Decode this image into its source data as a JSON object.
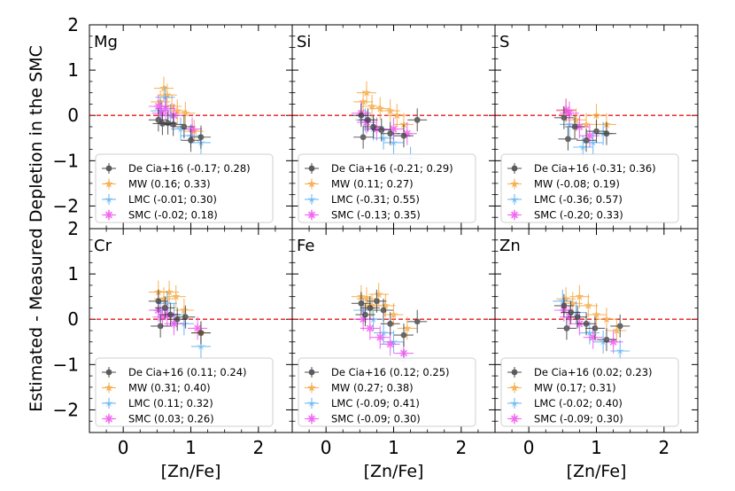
{
  "chart_data": {
    "type": "scatter",
    "xlabel": "[Zn/Fe]",
    "ylabel": "Estimated - Measured Depletion in the SMC",
    "xlim": [
      -0.5,
      2.5
    ],
    "ylim": [
      -2.5,
      2.0
    ],
    "xticks": [
      0,
      1,
      2
    ],
    "xtick_labels": [
      "0",
      "1",
      "2"
    ],
    "yticks": [
      -2,
      -1,
      0,
      1,
      2
    ],
    "ytick_labels": [
      "−2",
      "−1",
      "0",
      "1",
      "2"
    ],
    "reference_line": 0,
    "colors": {
      "De Cia+16": "#333333",
      "MW": "#f5a030",
      "LMC": "#48a8f0",
      "SMC": "#ee44ee"
    },
    "panels": [
      {
        "name": "Mg",
        "legend": [
          {
            "series": "De Cia+16",
            "label": "De Cia+16 (-0.17; 0.28)"
          },
          {
            "series": "MW",
            "label": "MW (0.16; 0.33)"
          },
          {
            "series": "LMC",
            "label": "LMC (-0.01; 0.30)"
          },
          {
            "series": "SMC",
            "label": "SMC (-0.02; 0.18)"
          }
        ],
        "points": [
          {
            "series": "De Cia+16",
            "x": 0.52,
            "y": -0.1
          },
          {
            "series": "De Cia+16",
            "x": 0.58,
            "y": -0.18
          },
          {
            "series": "De Cia+16",
            "x": 0.66,
            "y": -0.17
          },
          {
            "series": "De Cia+16",
            "x": 0.74,
            "y": -0.2
          },
          {
            "series": "De Cia+16",
            "x": 0.9,
            "y": -0.25
          },
          {
            "series": "De Cia+16",
            "x": 1.0,
            "y": -0.55
          },
          {
            "series": "De Cia+16",
            "x": 1.15,
            "y": -0.48
          },
          {
            "series": "MW",
            "x": 0.55,
            "y": 0.3
          },
          {
            "series": "MW",
            "x": 0.6,
            "y": 0.6
          },
          {
            "series": "MW",
            "x": 0.65,
            "y": 0.45
          },
          {
            "series": "MW",
            "x": 0.72,
            "y": 0.2
          },
          {
            "series": "MW",
            "x": 0.8,
            "y": 0.1
          },
          {
            "series": "MW",
            "x": 0.92,
            "y": 0.05
          },
          {
            "series": "MW",
            "x": 1.05,
            "y": -0.35
          },
          {
            "series": "LMC",
            "x": 0.55,
            "y": 0.1
          },
          {
            "series": "LMC",
            "x": 0.62,
            "y": 0.4
          },
          {
            "series": "LMC",
            "x": 0.7,
            "y": 0.0
          },
          {
            "series": "LMC",
            "x": 0.85,
            "y": -0.3
          },
          {
            "series": "LMC",
            "x": 1.0,
            "y": -0.45
          },
          {
            "series": "LMC",
            "x": 1.15,
            "y": -0.6
          },
          {
            "series": "SMC",
            "x": 0.52,
            "y": 0.2
          },
          {
            "series": "SMC",
            "x": 0.57,
            "y": 0.05
          },
          {
            "series": "SMC",
            "x": 0.63,
            "y": 0.15
          },
          {
            "series": "SMC",
            "x": 0.75,
            "y": 0.0
          },
          {
            "series": "SMC",
            "x": 1.02,
            "y": -0.3
          }
        ]
      },
      {
        "name": "Si",
        "legend": [
          {
            "series": "De Cia+16",
            "label": "De Cia+16 (-0.21; 0.29)"
          },
          {
            "series": "MW",
            "label": "MW (0.11; 0.27)"
          },
          {
            "series": "LMC",
            "label": "LMC (-0.31; 0.55)"
          },
          {
            "series": "SMC",
            "label": "SMC (-0.13; 0.35)"
          }
        ],
        "points": [
          {
            "series": "De Cia+16",
            "x": 0.52,
            "y": 0.0
          },
          {
            "series": "De Cia+16",
            "x": 0.55,
            "y": -0.48
          },
          {
            "series": "De Cia+16",
            "x": 0.62,
            "y": -0.1
          },
          {
            "series": "De Cia+16",
            "x": 0.7,
            "y": -0.25
          },
          {
            "series": "De Cia+16",
            "x": 0.82,
            "y": -0.32
          },
          {
            "series": "De Cia+16",
            "x": 0.95,
            "y": -0.4
          },
          {
            "series": "De Cia+16",
            "x": 1.15,
            "y": -0.45
          },
          {
            "series": "De Cia+16",
            "x": 1.35,
            "y": -0.1
          },
          {
            "series": "MW",
            "x": 0.55,
            "y": 0.3
          },
          {
            "series": "MW",
            "x": 0.6,
            "y": 0.5
          },
          {
            "series": "MW",
            "x": 0.68,
            "y": 0.2
          },
          {
            "series": "MW",
            "x": 0.8,
            "y": 0.15
          },
          {
            "series": "MW",
            "x": 0.95,
            "y": 0.1
          },
          {
            "series": "MW",
            "x": 1.05,
            "y": 0.0
          },
          {
            "series": "MW",
            "x": 1.15,
            "y": -0.2
          },
          {
            "series": "LMC",
            "x": 0.58,
            "y": -0.1
          },
          {
            "series": "LMC",
            "x": 0.7,
            "y": -0.3
          },
          {
            "series": "LMC",
            "x": 0.85,
            "y": -0.5
          },
          {
            "series": "LMC",
            "x": 1.0,
            "y": -0.6
          },
          {
            "series": "LMC",
            "x": 1.25,
            "y": -0.95
          },
          {
            "series": "SMC",
            "x": 0.52,
            "y": 0.05
          },
          {
            "series": "SMC",
            "x": 0.6,
            "y": -0.15
          },
          {
            "series": "SMC",
            "x": 0.75,
            "y": -0.3
          },
          {
            "series": "SMC",
            "x": 1.0,
            "y": -0.3
          },
          {
            "series": "SMC",
            "x": 1.2,
            "y": -0.4
          }
        ]
      },
      {
        "name": "S",
        "legend": [
          {
            "series": "De Cia+16",
            "label": "De Cia+16 (-0.31; 0.36)"
          },
          {
            "series": "MW",
            "label": "MW (-0.08; 0.19)"
          },
          {
            "series": "LMC",
            "label": "LMC (-0.36; 0.57)"
          },
          {
            "series": "SMC",
            "label": "SMC (-0.20; 0.33)"
          }
        ],
        "points": [
          {
            "series": "De Cia+16",
            "x": 0.52,
            "y": -0.05
          },
          {
            "series": "De Cia+16",
            "x": 0.58,
            "y": -0.52
          },
          {
            "series": "De Cia+16",
            "x": 0.68,
            "y": -0.25
          },
          {
            "series": "De Cia+16",
            "x": 0.85,
            "y": -0.55
          },
          {
            "series": "De Cia+16",
            "x": 1.0,
            "y": -0.35
          },
          {
            "series": "De Cia+16",
            "x": 1.15,
            "y": -0.4
          },
          {
            "series": "MW",
            "x": 0.55,
            "y": 0.1
          },
          {
            "series": "MW",
            "x": 0.7,
            "y": -0.1
          },
          {
            "series": "MW",
            "x": 0.85,
            "y": -0.2
          },
          {
            "series": "MW",
            "x": 1.0,
            "y": 0.0
          },
          {
            "series": "MW",
            "x": 1.15,
            "y": -0.2
          },
          {
            "series": "LMC",
            "x": 0.6,
            "y": -0.2
          },
          {
            "series": "LMC",
            "x": 0.8,
            "y": -0.7
          },
          {
            "series": "LMC",
            "x": 0.95,
            "y": -0.6
          },
          {
            "series": "LMC",
            "x": 1.1,
            "y": -0.4
          },
          {
            "series": "SMC",
            "x": 0.55,
            "y": 0.12
          },
          {
            "series": "SMC",
            "x": 0.6,
            "y": 0.05
          },
          {
            "series": "SMC",
            "x": 0.75,
            "y": -0.25
          },
          {
            "series": "SMC",
            "x": 0.9,
            "y": -0.45
          }
        ]
      },
      {
        "name": "Cr",
        "legend": [
          {
            "series": "De Cia+16",
            "label": "De Cia+16 (0.11; 0.24)"
          },
          {
            "series": "MW",
            "label": "MW (0.31; 0.40)"
          },
          {
            "series": "LMC",
            "label": "LMC (0.11; 0.32)"
          },
          {
            "series": "SMC",
            "label": "SMC (0.03; 0.26)"
          }
        ],
        "points": [
          {
            "series": "De Cia+16",
            "x": 0.52,
            "y": 0.4
          },
          {
            "series": "De Cia+16",
            "x": 0.55,
            "y": -0.15
          },
          {
            "series": "De Cia+16",
            "x": 0.62,
            "y": 0.25
          },
          {
            "series": "De Cia+16",
            "x": 0.7,
            "y": 0.1
          },
          {
            "series": "De Cia+16",
            "x": 0.8,
            "y": 0.0
          },
          {
            "series": "De Cia+16",
            "x": 0.92,
            "y": 0.05
          },
          {
            "series": "De Cia+16",
            "x": 1.15,
            "y": -0.3
          },
          {
            "series": "MW",
            "x": 0.52,
            "y": 0.6
          },
          {
            "series": "MW",
            "x": 0.6,
            "y": 0.45
          },
          {
            "series": "MW",
            "x": 0.68,
            "y": 0.6
          },
          {
            "series": "MW",
            "x": 0.78,
            "y": 0.5
          },
          {
            "series": "MW",
            "x": 0.9,
            "y": 0.2
          },
          {
            "series": "MW",
            "x": 1.15,
            "y": -0.3
          },
          {
            "series": "LMC",
            "x": 0.55,
            "y": 0.2
          },
          {
            "series": "LMC",
            "x": 0.65,
            "y": 0.35
          },
          {
            "series": "LMC",
            "x": 0.75,
            "y": 0.1
          },
          {
            "series": "LMC",
            "x": 0.9,
            "y": -0.1
          },
          {
            "series": "LMC",
            "x": 1.15,
            "y": -0.6
          },
          {
            "series": "SMC",
            "x": 0.52,
            "y": 0.2
          },
          {
            "series": "SMC",
            "x": 0.58,
            "y": 0.05
          },
          {
            "series": "SMC",
            "x": 0.65,
            "y": 0.1
          },
          {
            "series": "SMC",
            "x": 0.75,
            "y": -0.1
          },
          {
            "series": "SMC",
            "x": 1.1,
            "y": -0.2
          }
        ]
      },
      {
        "name": "Fe",
        "legend": [
          {
            "series": "De Cia+16",
            "label": "De Cia+16 (0.12; 0.25)"
          },
          {
            "series": "MW",
            "label": "MW (0.27; 0.38)"
          },
          {
            "series": "LMC",
            "label": "LMC (-0.09; 0.41)"
          },
          {
            "series": "SMC",
            "label": "SMC (-0.09; 0.30)"
          }
        ],
        "points": [
          {
            "series": "De Cia+16",
            "x": 0.52,
            "y": 0.35
          },
          {
            "series": "De Cia+16",
            "x": 0.58,
            "y": 0.1
          },
          {
            "series": "De Cia+16",
            "x": 0.65,
            "y": 0.25
          },
          {
            "series": "De Cia+16",
            "x": 0.75,
            "y": 0.4
          },
          {
            "series": "De Cia+16",
            "x": 0.85,
            "y": 0.2
          },
          {
            "series": "De Cia+16",
            "x": 0.95,
            "y": -0.1
          },
          {
            "series": "De Cia+16",
            "x": 1.15,
            "y": -0.35
          },
          {
            "series": "De Cia+16",
            "x": 1.35,
            "y": -0.05
          },
          {
            "series": "MW",
            "x": 0.52,
            "y": 0.5
          },
          {
            "series": "MW",
            "x": 0.6,
            "y": 0.45
          },
          {
            "series": "MW",
            "x": 0.68,
            "y": 0.3
          },
          {
            "series": "MW",
            "x": 0.78,
            "y": 0.55
          },
          {
            "series": "MW",
            "x": 0.88,
            "y": 0.3
          },
          {
            "series": "MW",
            "x": 1.0,
            "y": 0.1
          },
          {
            "series": "MW",
            "x": 1.2,
            "y": -0.2
          },
          {
            "series": "LMC",
            "x": 0.55,
            "y": 0.2
          },
          {
            "series": "LMC",
            "x": 0.7,
            "y": 0.0
          },
          {
            "series": "LMC",
            "x": 0.85,
            "y": -0.3
          },
          {
            "series": "LMC",
            "x": 1.0,
            "y": -0.5
          },
          {
            "series": "LMC",
            "x": 1.15,
            "y": -0.9
          },
          {
            "series": "SMC",
            "x": 0.55,
            "y": 0.0
          },
          {
            "series": "SMC",
            "x": 0.65,
            "y": -0.2
          },
          {
            "series": "SMC",
            "x": 0.8,
            "y": -0.4
          },
          {
            "series": "SMC",
            "x": 0.95,
            "y": -0.55
          },
          {
            "series": "SMC",
            "x": 1.15,
            "y": -0.75
          }
        ]
      },
      {
        "name": "Zn",
        "legend": [
          {
            "series": "De Cia+16",
            "label": "De Cia+16 (0.02; 0.23)"
          },
          {
            "series": "MW",
            "label": "MW (0.17; 0.31)"
          },
          {
            "series": "LMC",
            "label": "LMC (-0.02; 0.40)"
          },
          {
            "series": "SMC",
            "label": "SMC (-0.09; 0.30)"
          }
        ],
        "points": [
          {
            "series": "De Cia+16",
            "x": 0.52,
            "y": 0.3
          },
          {
            "series": "De Cia+16",
            "x": 0.56,
            "y": -0.2
          },
          {
            "series": "De Cia+16",
            "x": 0.62,
            "y": 0.15
          },
          {
            "series": "De Cia+16",
            "x": 0.72,
            "y": 0.05
          },
          {
            "series": "De Cia+16",
            "x": 0.85,
            "y": -0.1
          },
          {
            "series": "De Cia+16",
            "x": 0.98,
            "y": -0.2
          },
          {
            "series": "De Cia+16",
            "x": 1.15,
            "y": -0.45
          },
          {
            "series": "De Cia+16",
            "x": 1.35,
            "y": -0.15
          },
          {
            "series": "MW",
            "x": 0.55,
            "y": 0.45
          },
          {
            "series": "MW",
            "x": 0.65,
            "y": 0.35
          },
          {
            "series": "MW",
            "x": 0.75,
            "y": 0.5
          },
          {
            "series": "MW",
            "x": 0.88,
            "y": 0.3
          },
          {
            "series": "MW",
            "x": 1.0,
            "y": 0.1
          },
          {
            "series": "MW",
            "x": 1.15,
            "y": 0.0
          },
          {
            "series": "MW",
            "x": 1.3,
            "y": -0.25
          },
          {
            "series": "LMC",
            "x": 0.5,
            "y": 0.4
          },
          {
            "series": "LMC",
            "x": 0.7,
            "y": 0.15
          },
          {
            "series": "LMC",
            "x": 0.9,
            "y": -0.3
          },
          {
            "series": "LMC",
            "x": 1.1,
            "y": -0.5
          },
          {
            "series": "LMC",
            "x": 1.35,
            "y": -0.7
          },
          {
            "series": "SMC",
            "x": 0.52,
            "y": 0.2
          },
          {
            "series": "SMC",
            "x": 0.6,
            "y": 0.05
          },
          {
            "series": "SMC",
            "x": 0.75,
            "y": -0.1
          },
          {
            "series": "SMC",
            "x": 0.95,
            "y": -0.4
          },
          {
            "series": "SMC",
            "x": 1.25,
            "y": -0.5
          }
        ]
      }
    ]
  }
}
